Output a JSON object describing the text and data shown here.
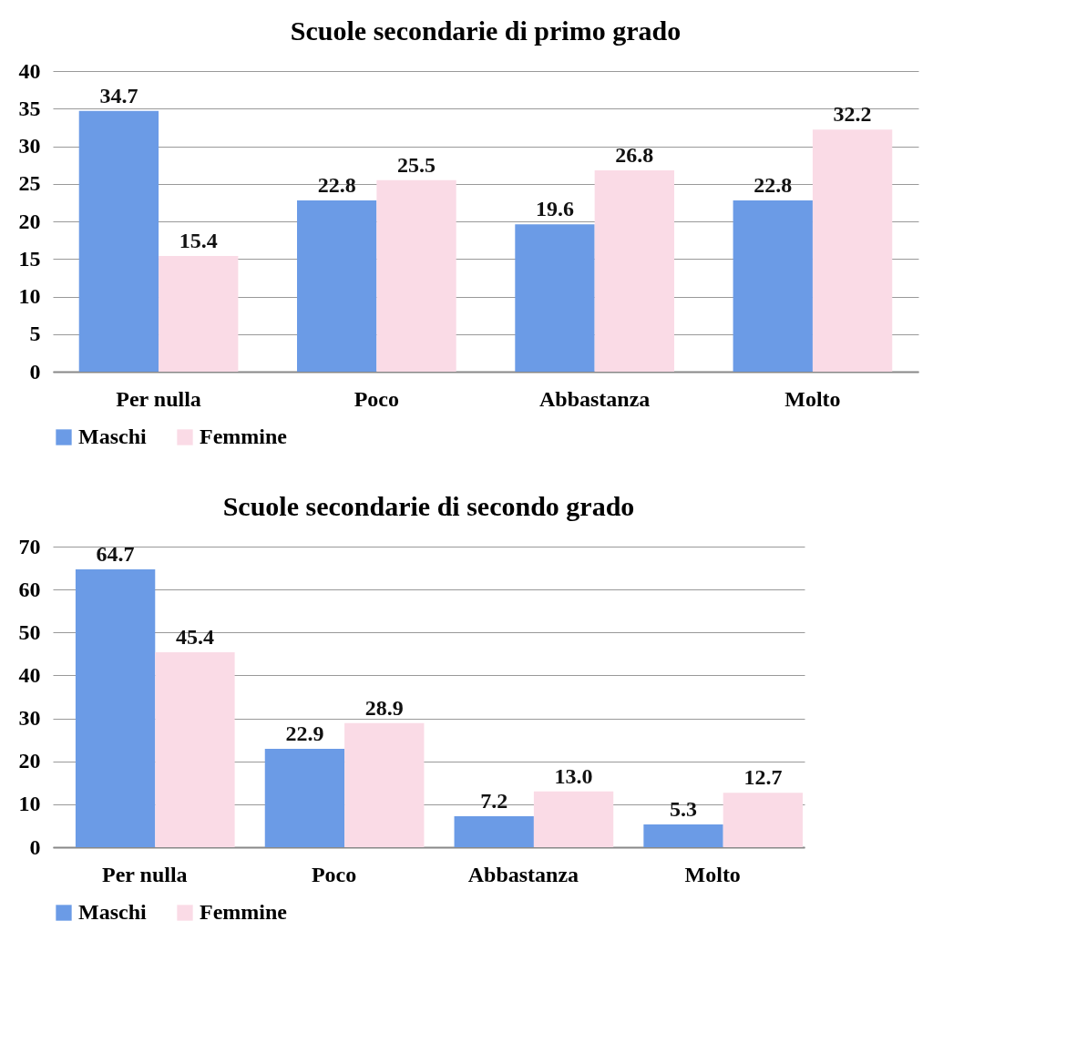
{
  "chart_data": [
    {
      "type": "bar",
      "title": "Scuole secondarie di primo grado",
      "categories": [
        "Per nulla",
        "Poco",
        "Abbastanza",
        "Molto"
      ],
      "series": [
        {
          "name": "Maschi",
          "color": "#6b9be6",
          "values": [
            34.7,
            22.8,
            19.6,
            22.8
          ],
          "value_labels": [
            "34.7",
            "22.8",
            "19.6",
            "22.8"
          ]
        },
        {
          "name": "Femmine",
          "color": "#fadbe6",
          "values": [
            15.4,
            25.5,
            26.8,
            32.2
          ],
          "value_labels": [
            "15.4",
            "25.5",
            "26.8",
            "32.2"
          ]
        }
      ],
      "ylim": [
        0,
        40
      ],
      "yticks": [
        0,
        5,
        10,
        15,
        20,
        25,
        30,
        35,
        40
      ],
      "grid": "y",
      "legend": "bottom"
    },
    {
      "type": "bar",
      "title": "Scuole secondarie di secondo grado",
      "categories": [
        "Per nulla",
        "Poco",
        "Abbastanza",
        "Molto"
      ],
      "series": [
        {
          "name": "Maschi",
          "color": "#6b9be6",
          "values": [
            64.7,
            22.9,
            7.2,
            5.3
          ],
          "value_labels": [
            "64.7",
            "22.9",
            "7.2",
            "5.3"
          ]
        },
        {
          "name": "Femmine",
          "color": "#fadbe6",
          "values": [
            45.4,
            28.9,
            13.0,
            12.7
          ],
          "value_labels": [
            "45.4",
            "28.9",
            "13.0",
            "12.7"
          ]
        }
      ],
      "ylim": [
        0,
        70
      ],
      "yticks": [
        0,
        10,
        20,
        30,
        40,
        50,
        60,
        70
      ],
      "grid": "y",
      "legend": "bottom"
    }
  ]
}
